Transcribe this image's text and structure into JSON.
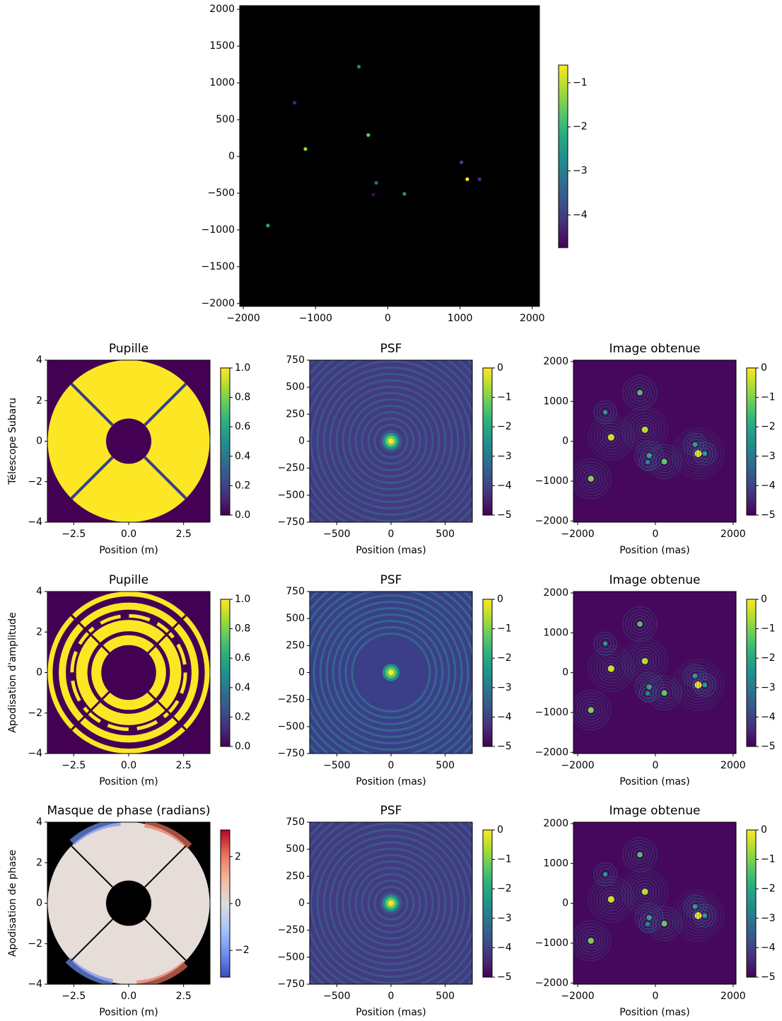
{
  "chart_data": [
    {
      "type": "scatter",
      "background": "#000000",
      "x": [
        -400,
        -1290,
        -270,
        -1140,
        1020,
        1100,
        1270,
        -160,
        -200,
        230,
        -1660
      ],
      "y": [
        1220,
        730,
        290,
        100,
        -80,
        -310,
        -310,
        -360,
        -520,
        -510,
        -940
      ],
      "values": [
        -3.0,
        -4.3,
        -1.6,
        -1.3,
        -3.9,
        -0.6,
        -4.2,
        -3.4,
        -4.7,
        -2.7,
        -2.3
      ],
      "xlim": [
        -2050,
        2100
      ],
      "ylim": [
        -2040,
        2050
      ],
      "xticks": [
        {
          "value": -2000,
          "label": "−2000"
        },
        {
          "value": -1000,
          "label": "−1000"
        },
        0,
        1000,
        2000
      ],
      "yticks": [
        {
          "value": -2000,
          "label": "−2000"
        },
        {
          "value": -1500,
          "label": "−1500"
        },
        {
          "value": -1000,
          "label": "−1000"
        },
        {
          "value": -500,
          "label": "−500"
        },
        0,
        500,
        1000,
        1500,
        2000
      ],
      "colorbar": {
        "colormap": "viridis",
        "clim": [
          -4.74,
          -0.6
        ],
        "ticks": [
          {
            "value": -4,
            "label": "−4"
          },
          {
            "value": -3,
            "label": "−3"
          },
          {
            "value": -2,
            "label": "−2"
          },
          {
            "value": -1,
            "label": "−1"
          }
        ]
      }
    },
    {
      "type": "image",
      "title": "Pupille",
      "xlabel": "Position (m)",
      "ylabel": "Télescope Subaru",
      "xlim": [
        -3.7,
        3.7
      ],
      "ylim": [
        -4,
        4
      ],
      "xticks": [
        {
          "value": -2.5,
          "label": "−2.5"
        },
        {
          "value": 0,
          "label": "0.0"
        },
        2.5
      ],
      "yticks": [
        {
          "value": -4,
          "label": "−4"
        },
        {
          "value": -2,
          "label": "−2"
        },
        0,
        2,
        4
      ],
      "colorbar": {
        "colormap": "viridis",
        "clim": [
          0,
          1
        ],
        "ticks": [
          {
            "value": 0,
            "label": "0.0"
          },
          0.2,
          0.4,
          0.6,
          0.8,
          {
            "value": 1,
            "label": "1.0"
          }
        ]
      }
    },
    {
      "type": "image",
      "title": "PSF",
      "xlabel": "Position (mas)",
      "xlim": [
        -750,
        750
      ],
      "ylim": [
        -750,
        750
      ],
      "xticks": [
        {
          "value": -500,
          "label": "−500"
        },
        0,
        500
      ],
      "yticks": [
        {
          "value": -750,
          "label": "−750"
        },
        {
          "value": -500,
          "label": "−500"
        },
        {
          "value": -250,
          "label": "−250"
        },
        0,
        250,
        500,
        750
      ],
      "colorbar": {
        "colormap": "viridis",
        "clim": [
          -5,
          0
        ],
        "ticks": [
          0,
          {
            "value": -1,
            "label": "−1"
          },
          {
            "value": -2,
            "label": "−2"
          },
          {
            "value": -3,
            "label": "−3"
          },
          {
            "value": -4,
            "label": "−4"
          },
          {
            "value": -5,
            "label": "−5"
          }
        ]
      }
    },
    {
      "type": "image",
      "title": "Image obtenue",
      "xlabel": "Position (mas)",
      "xlim": [
        -2110,
        2075
      ],
      "ylim": [
        -2030,
        2036
      ],
      "xticks": [
        {
          "value": -2000,
          "label": "−2000"
        },
        0,
        2000
      ],
      "yticks": [
        {
          "value": -2000,
          "label": "−2000"
        },
        {
          "value": -1000,
          "label": "−1000"
        },
        0,
        1000,
        2000
      ],
      "colorbar": {
        "colormap": "viridis",
        "clim": [
          -5,
          0
        ],
        "ticks": [
          0,
          {
            "value": -1,
            "label": "−1"
          },
          {
            "value": -2,
            "label": "−2"
          },
          {
            "value": -3,
            "label": "−3"
          },
          {
            "value": -4,
            "label": "−4"
          },
          {
            "value": -5,
            "label": "−5"
          }
        ]
      }
    },
    {
      "type": "image",
      "title": "Pupille",
      "xlabel": "Position (m)",
      "ylabel": "Apodisation d'amplitude",
      "xlim": [
        -3.7,
        3.7
      ],
      "ylim": [
        -4,
        4
      ],
      "xticks": [
        {
          "value": -2.5,
          "label": "−2.5"
        },
        {
          "value": 0,
          "label": "0.0"
        },
        2.5
      ],
      "yticks": [
        {
          "value": -4,
          "label": "−4"
        },
        {
          "value": -2,
          "label": "−2"
        },
        0,
        2,
        4
      ],
      "colorbar": {
        "colormap": "viridis",
        "clim": [
          0,
          1
        ],
        "ticks": [
          {
            "value": 0,
            "label": "0.0"
          },
          0.2,
          0.4,
          0.6,
          0.8,
          {
            "value": 1,
            "label": "1.0"
          }
        ]
      }
    },
    {
      "type": "image",
      "title": "PSF",
      "xlabel": "Position (mas)",
      "xlim": [
        -750,
        750
      ],
      "ylim": [
        -750,
        750
      ],
      "xticks": [
        {
          "value": -500,
          "label": "−500"
        },
        0,
        500
      ],
      "yticks": [
        {
          "value": -750,
          "label": "−750"
        },
        {
          "value": -500,
          "label": "−500"
        },
        {
          "value": -250,
          "label": "−250"
        },
        0,
        250,
        500,
        750
      ],
      "colorbar": {
        "colormap": "viridis",
        "clim": [
          -5,
          0
        ],
        "ticks": [
          0,
          {
            "value": -1,
            "label": "−1"
          },
          {
            "value": -2,
            "label": "−2"
          },
          {
            "value": -3,
            "label": "−3"
          },
          {
            "value": -4,
            "label": "−4"
          },
          {
            "value": -5,
            "label": "−5"
          }
        ]
      }
    },
    {
      "type": "image",
      "title": "Image obtenue",
      "xlabel": "Position (mas)",
      "xlim": [
        -2110,
        2075
      ],
      "ylim": [
        -2030,
        2036
      ],
      "xticks": [
        {
          "value": -2000,
          "label": "−2000"
        },
        0,
        2000
      ],
      "yticks": [
        {
          "value": -2000,
          "label": "−2000"
        },
        {
          "value": -1000,
          "label": "−1000"
        },
        0,
        1000,
        2000
      ],
      "colorbar": {
        "colormap": "viridis",
        "clim": [
          -5,
          0
        ],
        "ticks": [
          0,
          {
            "value": -1,
            "label": "−1"
          },
          {
            "value": -2,
            "label": "−2"
          },
          {
            "value": -3,
            "label": "−3"
          },
          {
            "value": -4,
            "label": "−4"
          },
          {
            "value": -5,
            "label": "−5"
          }
        ]
      }
    },
    {
      "type": "image",
      "title": "Masque de phase (radians)",
      "xlabel": "Position (m)",
      "ylabel": "Apodisation de phase",
      "xlim": [
        -3.7,
        3.7
      ],
      "ylim": [
        -4,
        4
      ],
      "xticks": [
        {
          "value": -2.5,
          "label": "−2.5"
        },
        {
          "value": 0,
          "label": "0.0"
        },
        2.5
      ],
      "yticks": [
        {
          "value": -4,
          "label": "−4"
        },
        {
          "value": -2,
          "label": "−2"
        },
        0,
        2,
        4
      ],
      "colorbar": {
        "colormap": "coolwarm",
        "clim": [
          -3.14,
          3.14
        ],
        "ticks": [
          {
            "value": -2,
            "label": "−2"
          },
          0,
          2
        ]
      }
    },
    {
      "type": "image",
      "title": "PSF",
      "xlabel": "Position (mas)",
      "xlim": [
        -750,
        750
      ],
      "ylim": [
        -750,
        750
      ],
      "xticks": [
        {
          "value": -500,
          "label": "−500"
        },
        0,
        500
      ],
      "yticks": [
        {
          "value": -750,
          "label": "−750"
        },
        {
          "value": -500,
          "label": "−500"
        },
        {
          "value": -250,
          "label": "−250"
        },
        0,
        250,
        500,
        750
      ],
      "colorbar": {
        "colormap": "viridis",
        "clim": [
          -5,
          0
        ],
        "ticks": [
          0,
          {
            "value": -1,
            "label": "−1"
          },
          {
            "value": -2,
            "label": "−2"
          },
          {
            "value": -3,
            "label": "−3"
          },
          {
            "value": -4,
            "label": "−4"
          },
          {
            "value": -5,
            "label": "−5"
          }
        ]
      }
    },
    {
      "type": "image",
      "title": "Image obtenue",
      "xlabel": "Position (mas)",
      "xlim": [
        -2110,
        2075
      ],
      "ylim": [
        -2030,
        2036
      ],
      "xticks": [
        {
          "value": -2000,
          "label": "−2000"
        },
        0,
        2000
      ],
      "yticks": [
        {
          "value": -2000,
          "label": "−2000"
        },
        {
          "value": -1000,
          "label": "−1000"
        },
        0,
        1000,
        2000
      ],
      "colorbar": {
        "colormap": "viridis",
        "clim": [
          -5,
          0
        ],
        "ticks": [
          0,
          {
            "value": -1,
            "label": "−1"
          },
          {
            "value": -2,
            "label": "−2"
          },
          {
            "value": -3,
            "label": "−3"
          },
          {
            "value": -4,
            "label": "−4"
          },
          {
            "value": -5,
            "label": "−5"
          }
        ]
      }
    }
  ]
}
